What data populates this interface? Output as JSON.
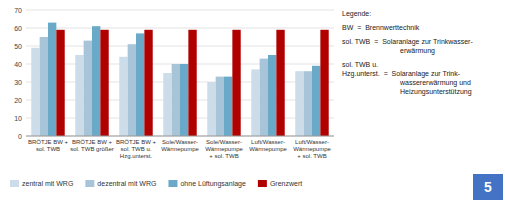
{
  "chart_data": {
    "type": "bar",
    "categories": [
      "BRÖTJE BW +\nsol. TWB",
      "BRÖTJE BW +\nsol. TWB größer",
      "BRÖTJE BW +\nsol. TWB u.\nHzg.unterst.",
      "Sole/Wasser-\nWärmepumpe",
      "Sole/Wasser-\nWärmepumpe\n+ sol. TWB",
      "Luft/Wasser-\nWärmepumpe",
      "Luft/Wasser-\nWärmepumpe\n+ sol. TWB"
    ],
    "series": [
      {
        "name": "zentral mit WRG",
        "color": "#ccdce8",
        "values": [
          49,
          45,
          44,
          35,
          30,
          37,
          36
        ]
      },
      {
        "name": "dezentral mit WRG",
        "color": "#a8c4d8",
        "values": [
          55,
          53,
          51,
          40,
          33,
          43,
          36
        ]
      },
      {
        "name": "ohne Lüftungsanlage",
        "color": "#6aaac8",
        "values": [
          63,
          61,
          57,
          40,
          33,
          45,
          39
        ]
      },
      {
        "name": "Grenzwert",
        "color": "#b00000",
        "values": [
          59,
          59,
          59,
          59,
          59,
          59,
          59
        ]
      }
    ],
    "ylim": [
      0,
      70
    ],
    "yticks": [
      0,
      10,
      20,
      30,
      40,
      50,
      60,
      70
    ],
    "grid": true,
    "legend": "bottom",
    "annotations": [
      "Legende:",
      "BW  =  Brennwerttechnik",
      "sol. TWB  =  Solaranlage zur Trinkwasser-\nerwärmung",
      "sol. TWB u.\nHzg.unterst.  =  Solaranlage zur Trink-\nwassererwärmung und\nHeizungsunterstützung",
      "5"
    ]
  }
}
